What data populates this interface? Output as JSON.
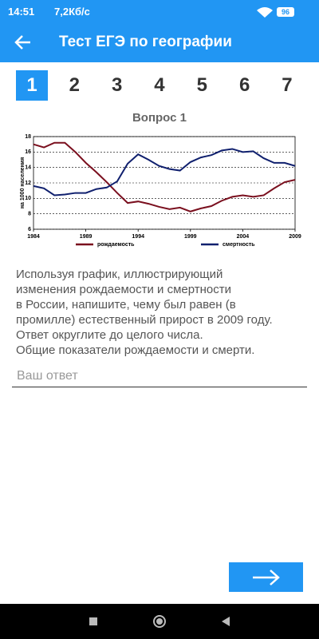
{
  "status_bar": {
    "time": "14:51",
    "network": "7,2Кб/с",
    "battery": "96"
  },
  "app_bar": {
    "title": "Тест ЕГЭ по географии"
  },
  "tabs": [
    "1",
    "2",
    "3",
    "4",
    "5",
    "6",
    "7"
  ],
  "question": {
    "label": "Вопрос 1",
    "text": [
      "Используя график, иллюстрирующий",
      "изменения рождаемости и смертности",
      "в России, напишите, чему был равен (в",
      "промилле) естественный прирост в 2009 году.",
      "Ответ округлите до целого числа.",
      "Общие показатели рождаемости и смерти."
    ]
  },
  "answer": {
    "placeholder": "Ваш ответ"
  },
  "chart_data": {
    "type": "line",
    "y_label": "на 1000 населения",
    "x": [
      1984,
      1985,
      1986,
      1987,
      1988,
      1989,
      1990,
      1991,
      1992,
      1993,
      1994,
      1995,
      1996,
      1997,
      1998,
      1999,
      2000,
      2001,
      2002,
      2003,
      2004,
      2005,
      2006,
      2007,
      2008,
      2009
    ],
    "series": [
      {
        "name": "рождаемость",
        "color": "#7a0f1e",
        "values": [
          17.0,
          16.6,
          17.2,
          17.2,
          16.0,
          14.6,
          13.4,
          12.1,
          10.7,
          9.4,
          9.6,
          9.3,
          8.9,
          8.6,
          8.8,
          8.3,
          8.7,
          9.0,
          9.7,
          10.2,
          10.4,
          10.2,
          10.4,
          11.3,
          12.1,
          12.4
        ]
      },
      {
        "name": "смертность",
        "color": "#10206e",
        "values": [
          11.6,
          11.3,
          10.4,
          10.5,
          10.7,
          10.7,
          11.2,
          11.4,
          12.2,
          14.5,
          15.7,
          15.0,
          14.2,
          13.8,
          13.6,
          14.7,
          15.3,
          15.6,
          16.2,
          16.4,
          16.0,
          16.1,
          15.2,
          14.6,
          14.6,
          14.2
        ]
      }
    ],
    "xlim": [
      1984,
      2009
    ],
    "xticks": [
      1984,
      1989,
      1994,
      1999,
      2004,
      2009
    ],
    "ylim": [
      6,
      18
    ],
    "yticks": [
      6,
      8,
      10,
      12,
      14,
      16,
      18
    ],
    "grid": true,
    "legend": "bottom"
  }
}
